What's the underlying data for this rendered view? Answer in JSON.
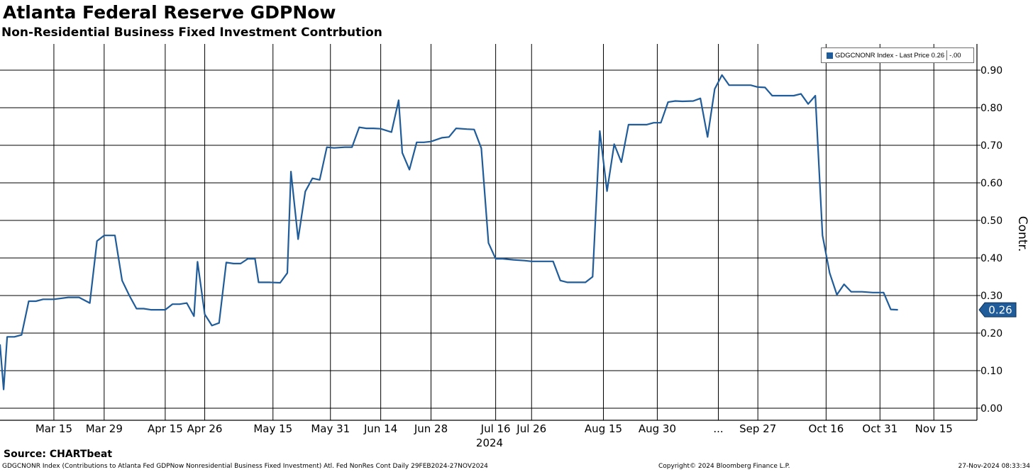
{
  "header": {
    "title": "Atlanta Federal Reserve GDPNow",
    "subtitle": "Non-Residential Business Fixed Investment Contrbution"
  },
  "legend": {
    "entry": "GDGCNONR Index - Last Price 0.26",
    "change": "-.00"
  },
  "footer": {
    "source": "Source: CHARTbeat",
    "description": "GDGCNONR Index (Contributions to Atlanta Fed GDPNow Nonresidential Business Fixed Investment) Atl. Fed NonRes Cont  Daily 29FEB2024-27NOV2024",
    "copyright": "Copyright© 2024 Bloomberg Finance L.P.",
    "timestamp": "27-Nov-2024 08:33:34"
  },
  "colors": {
    "line": "#1f5c99",
    "grid": "#000000",
    "badge": "#1f5c99"
  },
  "chart_data": {
    "type": "line",
    "title": "Atlanta Federal Reserve GDPNow",
    "subtitle": "Non-Residential Business Fixed Investment Contrbution",
    "ylabel": "Contr.",
    "xlabel": "",
    "year_label": "2024",
    "ylim": [
      0.0,
      0.95
    ],
    "y_ticks": [
      0.0,
      0.1,
      0.2,
      0.3,
      0.4,
      0.5,
      0.6,
      0.7,
      0.8,
      0.9
    ],
    "y_tick_labels": [
      "0.00",
      "0.10",
      "0.20",
      "0.30",
      "0.40",
      "0.50",
      "0.60",
      "0.70",
      "0.80",
      "0.90"
    ],
    "x_range": [
      "2024-02-29",
      "2024-11-27"
    ],
    "x_ticks": [
      {
        "date": "2024-03-15",
        "label": "Mar 15"
      },
      {
        "date": "2024-03-29",
        "label": "Mar 29"
      },
      {
        "date": "2024-04-15",
        "label": "Apr 15"
      },
      {
        "date": "2024-04-26",
        "label": "Apr 26"
      },
      {
        "date": "2024-05-15",
        "label": "May 15"
      },
      {
        "date": "2024-05-31",
        "label": "May 31"
      },
      {
        "date": "2024-06-14",
        "label": "Jun 14"
      },
      {
        "date": "2024-06-28",
        "label": "Jun 28"
      },
      {
        "date": "2024-07-16",
        "label": "Jul 16"
      },
      {
        "date": "2024-07-26",
        "label": "Jul 26"
      },
      {
        "date": "2024-08-15",
        "label": "Aug 15"
      },
      {
        "date": "2024-08-30",
        "label": "Aug 30"
      },
      {
        "date": "2024-09-16",
        "label": "..."
      },
      {
        "date": "2024-09-27",
        "label": "Sep 27"
      },
      {
        "date": "2024-10-16",
        "label": "Oct 16"
      },
      {
        "date": "2024-10-31",
        "label": "Oct 31"
      },
      {
        "date": "2024-11-15",
        "label": "Nov 15"
      }
    ],
    "grid": true,
    "legend_position": "top-right",
    "last_value_label": "0.26",
    "series": [
      {
        "name": "GDGCNONR Index",
        "points": [
          [
            "2024-02-29",
            0.17
          ],
          [
            "2024-03-01",
            0.05
          ],
          [
            "2024-03-02",
            0.19
          ],
          [
            "2024-03-04",
            0.19
          ],
          [
            "2024-03-06",
            0.195
          ],
          [
            "2024-03-08",
            0.285
          ],
          [
            "2024-03-10",
            0.285
          ],
          [
            "2024-03-12",
            0.29
          ],
          [
            "2024-03-13",
            0.29
          ],
          [
            "2024-03-15",
            0.29
          ],
          [
            "2024-03-19",
            0.295
          ],
          [
            "2024-03-22",
            0.295
          ],
          [
            "2024-03-25",
            0.28
          ],
          [
            "2024-03-27",
            0.445
          ],
          [
            "2024-03-29",
            0.46
          ],
          [
            "2024-04-01",
            0.46
          ],
          [
            "2024-04-03",
            0.34
          ],
          [
            "2024-04-05",
            0.3
          ],
          [
            "2024-04-07",
            0.265
          ],
          [
            "2024-04-09",
            0.265
          ],
          [
            "2024-04-11",
            0.262
          ],
          [
            "2024-04-13",
            0.262
          ],
          [
            "2024-04-15",
            0.262
          ],
          [
            "2024-04-17",
            0.277
          ],
          [
            "2024-04-19",
            0.277
          ],
          [
            "2024-04-21",
            0.28
          ],
          [
            "2024-04-23",
            0.245
          ],
          [
            "2024-04-24",
            0.39
          ],
          [
            "2024-04-26",
            0.25
          ],
          [
            "2024-04-28",
            0.22
          ],
          [
            "2024-04-30",
            0.227
          ],
          [
            "2024-05-02",
            0.388
          ],
          [
            "2024-05-04",
            0.385
          ],
          [
            "2024-05-06",
            0.385
          ],
          [
            "2024-05-08",
            0.398
          ],
          [
            "2024-05-10",
            0.398
          ],
          [
            "2024-05-11",
            0.335
          ],
          [
            "2024-05-14",
            0.335
          ],
          [
            "2024-05-17",
            0.334
          ],
          [
            "2024-05-19",
            0.36
          ],
          [
            "2024-05-20",
            0.63
          ],
          [
            "2024-05-22",
            0.45
          ],
          [
            "2024-05-24",
            0.577
          ],
          [
            "2024-05-26",
            0.612
          ],
          [
            "2024-05-28",
            0.608
          ],
          [
            "2024-05-30",
            0.695
          ],
          [
            "2024-06-01",
            0.693
          ],
          [
            "2024-06-04",
            0.695
          ],
          [
            "2024-06-06",
            0.695
          ],
          [
            "2024-06-08",
            0.748
          ],
          [
            "2024-06-10",
            0.745
          ],
          [
            "2024-06-12",
            0.745
          ],
          [
            "2024-06-14",
            0.744
          ],
          [
            "2024-06-17",
            0.735
          ],
          [
            "2024-06-19",
            0.82
          ],
          [
            "2024-06-20",
            0.68
          ],
          [
            "2024-06-22",
            0.635
          ],
          [
            "2024-06-24",
            0.708
          ],
          [
            "2024-06-26",
            0.708
          ],
          [
            "2024-06-28",
            0.71
          ],
          [
            "2024-07-01",
            0.72
          ],
          [
            "2024-07-03",
            0.722
          ],
          [
            "2024-07-05",
            0.745
          ],
          [
            "2024-07-08",
            0.743
          ],
          [
            "2024-07-10",
            0.742
          ],
          [
            "2024-07-12",
            0.692
          ],
          [
            "2024-07-14",
            0.44
          ],
          [
            "2024-07-16",
            0.398
          ],
          [
            "2024-07-18",
            0.398
          ],
          [
            "2024-07-21",
            0.395
          ],
          [
            "2024-07-24",
            0.393
          ],
          [
            "2024-07-26",
            0.391
          ],
          [
            "2024-07-29",
            0.391
          ],
          [
            "2024-08-01",
            0.391
          ],
          [
            "2024-08-03",
            0.34
          ],
          [
            "2024-08-05",
            0.335
          ],
          [
            "2024-08-08",
            0.335
          ],
          [
            "2024-08-10",
            0.335
          ],
          [
            "2024-08-12",
            0.35
          ],
          [
            "2024-08-14",
            0.738
          ],
          [
            "2024-08-16",
            0.578
          ],
          [
            "2024-08-18",
            0.703
          ],
          [
            "2024-08-20",
            0.655
          ],
          [
            "2024-08-22",
            0.755
          ],
          [
            "2024-08-25",
            0.755
          ],
          [
            "2024-08-27",
            0.755
          ],
          [
            "2024-08-29",
            0.76
          ],
          [
            "2024-08-31",
            0.76
          ],
          [
            "2024-09-02",
            0.815
          ],
          [
            "2024-09-04",
            0.818
          ],
          [
            "2024-09-06",
            0.817
          ],
          [
            "2024-09-09",
            0.818
          ],
          [
            "2024-09-11",
            0.825
          ],
          [
            "2024-09-13",
            0.722
          ],
          [
            "2024-09-15",
            0.85
          ],
          [
            "2024-09-17",
            0.887
          ],
          [
            "2024-09-19",
            0.86
          ],
          [
            "2024-09-22",
            0.86
          ],
          [
            "2024-09-25",
            0.86
          ],
          [
            "2024-09-27",
            0.855
          ],
          [
            "2024-09-29",
            0.854
          ],
          [
            "2024-10-01",
            0.832
          ],
          [
            "2024-10-04",
            0.832
          ],
          [
            "2024-10-07",
            0.832
          ],
          [
            "2024-10-09",
            0.837
          ],
          [
            "2024-10-11",
            0.81
          ],
          [
            "2024-10-13",
            0.832
          ],
          [
            "2024-10-15",
            0.46
          ],
          [
            "2024-10-17",
            0.36
          ],
          [
            "2024-10-19",
            0.302
          ],
          [
            "2024-10-21",
            0.33
          ],
          [
            "2024-10-23",
            0.31
          ],
          [
            "2024-10-26",
            0.31
          ],
          [
            "2024-10-29",
            0.308
          ],
          [
            "2024-11-01",
            0.308
          ],
          [
            "2024-11-03",
            0.263
          ],
          [
            "2024-11-05",
            0.262
          ]
        ]
      }
    ]
  }
}
